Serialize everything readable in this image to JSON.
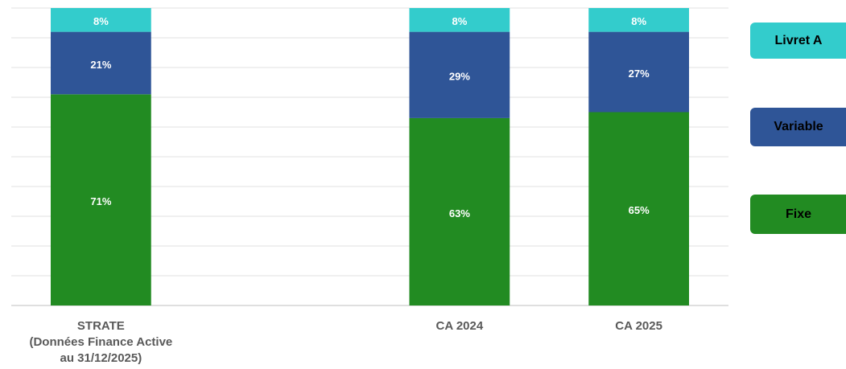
{
  "chart_data": {
    "type": "stacked_bar",
    "categories": [
      "STRATE\n(Données Finance Active\nau 31/12/2025)",
      null,
      "CA 2024",
      "CA 2025"
    ],
    "series": [
      {
        "name": "Fixe",
        "color": "#228b22",
        "values": [
          71,
          null,
          63,
          65
        ],
        "value_labels": [
          "71%",
          null,
          "63%",
          "65%"
        ]
      },
      {
        "name": "Variable",
        "color": "#2f5597",
        "values": [
          21,
          null,
          29,
          27
        ],
        "value_labels": [
          "21%",
          null,
          "29%",
          "27%"
        ]
      },
      {
        "name": "Livret A",
        "color": "#33cccc",
        "values": [
          8,
          null,
          8,
          8
        ],
        "value_labels": [
          "8%",
          null,
          "8%",
          "8%"
        ]
      }
    ],
    "ylim": [
      0,
      100
    ],
    "yticks": [
      0,
      10,
      20,
      30,
      40,
      50,
      60,
      70,
      80,
      90,
      100
    ],
    "grid": true,
    "legend": "right"
  }
}
